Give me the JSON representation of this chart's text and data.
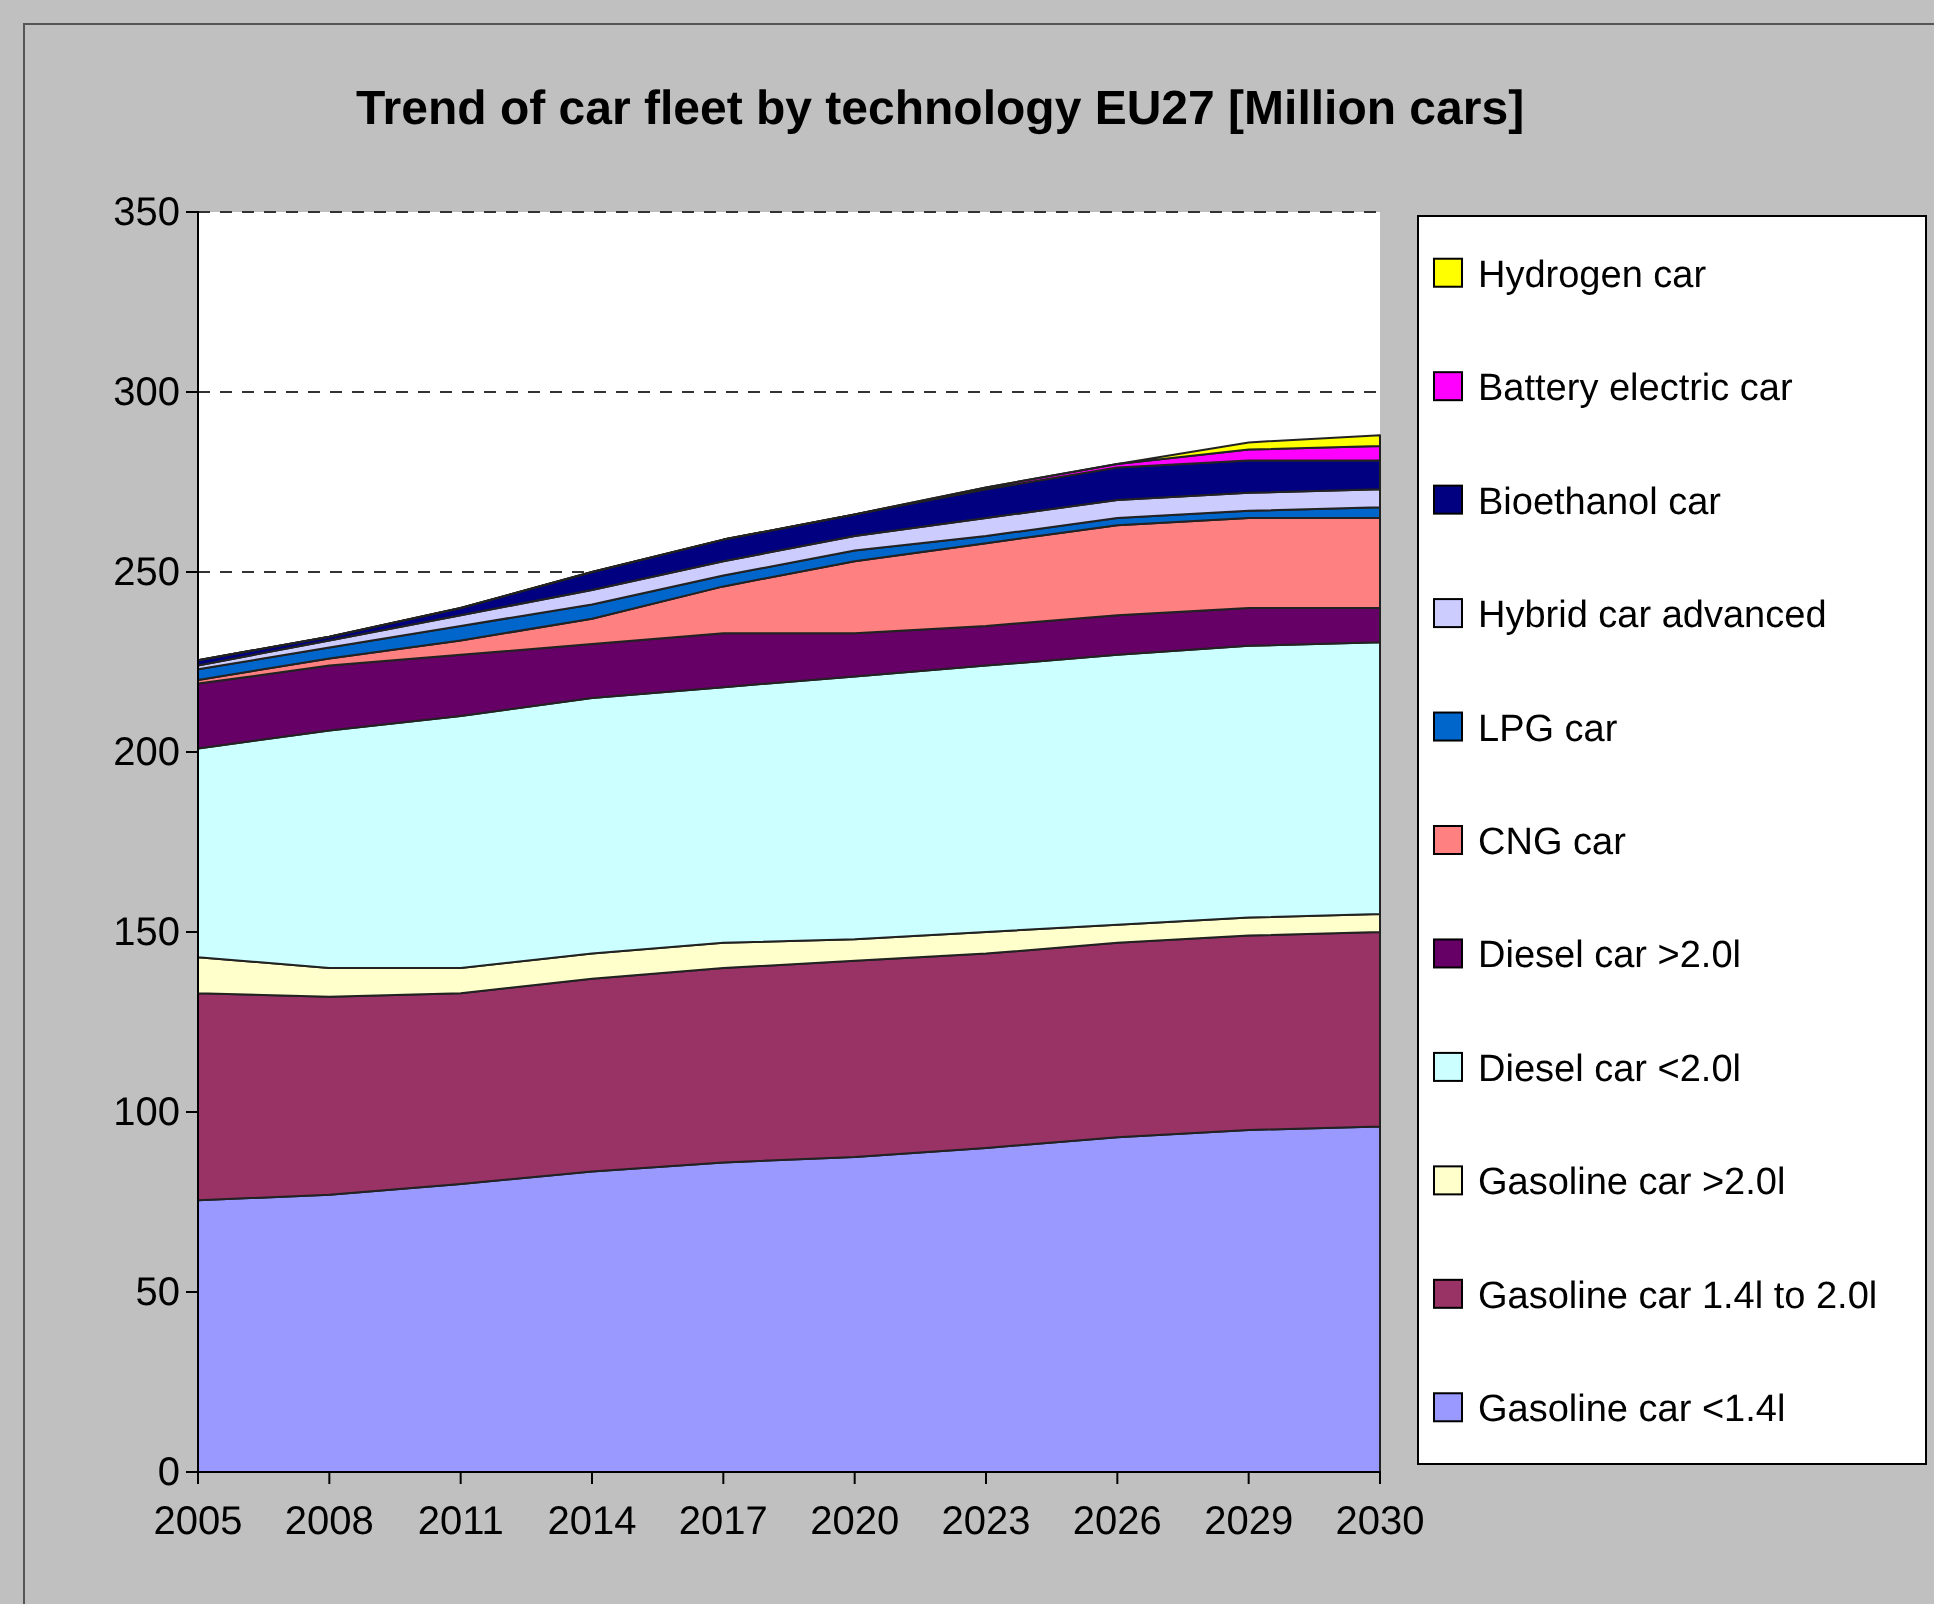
{
  "chart_data": {
    "type": "area",
    "stacked": true,
    "title": "Trend of car fleet by technology EU27 [Million cars]",
    "categories": [
      "2005",
      "2008",
      "2011",
      "2014",
      "2017",
      "2020",
      "2023",
      "2026",
      "2029",
      "2030"
    ],
    "ylim": [
      0,
      350
    ],
    "yticks": [
      0,
      50,
      100,
      150,
      200,
      250,
      300,
      350
    ],
    "grid": "y",
    "legend": "right",
    "series": [
      {
        "name": "Gasoline car <1.4l",
        "color": "#9999ff",
        "values": [
          75.5,
          77,
          80,
          83.5,
          86,
          87.5,
          90,
          93,
          95,
          96
        ]
      },
      {
        "name": "Gasoline car 1.4l to 2.0l",
        "color": "#993366",
        "values": [
          57.5,
          55,
          53,
          53.5,
          54,
          54.5,
          54,
          54,
          54,
          54
        ]
      },
      {
        "name": "Gasoline car >2.0l",
        "color": "#ffffcc",
        "values": [
          10,
          8,
          7,
          7,
          7,
          6,
          6,
          5,
          5,
          5
        ]
      },
      {
        "name": "Diesel car <2.0l",
        "color": "#ccffff",
        "values": [
          58,
          66,
          70,
          71,
          71,
          73,
          74,
          75,
          75.5,
          75.5
        ]
      },
      {
        "name": "Diesel car >2.0l",
        "color": "#660066",
        "values": [
          18,
          18,
          17,
          15,
          15,
          12,
          11,
          11,
          10.5,
          9.5
        ]
      },
      {
        "name": "CNG car",
        "color": "#ff8080",
        "values": [
          1,
          2,
          4,
          7,
          13,
          20,
          23,
          25,
          25,
          25
        ]
      },
      {
        "name": "LPG car",
        "color": "#0066cc",
        "values": [
          3,
          3,
          4,
          4,
          3,
          3,
          2,
          2,
          2,
          3
        ]
      },
      {
        "name": "Hybrid car advanced",
        "color": "#ccccff",
        "values": [
          1,
          2,
          3,
          4,
          4,
          4,
          5,
          5,
          5,
          5
        ]
      },
      {
        "name": "Bioethanol car",
        "color": "#000080",
        "values": [
          1.5,
          1,
          2,
          5,
          6,
          6,
          8,
          9,
          9,
          8
        ]
      },
      {
        "name": "Battery electric car",
        "color": "#ff00ff",
        "values": [
          0,
          0,
          0,
          0,
          0,
          0,
          0.5,
          1,
          3,
          4
        ]
      },
      {
        "name": "Hydrogen car",
        "color": "#ffff00",
        "values": [
          0,
          0,
          0,
          0,
          0,
          0,
          0,
          0,
          2,
          3
        ]
      }
    ]
  }
}
